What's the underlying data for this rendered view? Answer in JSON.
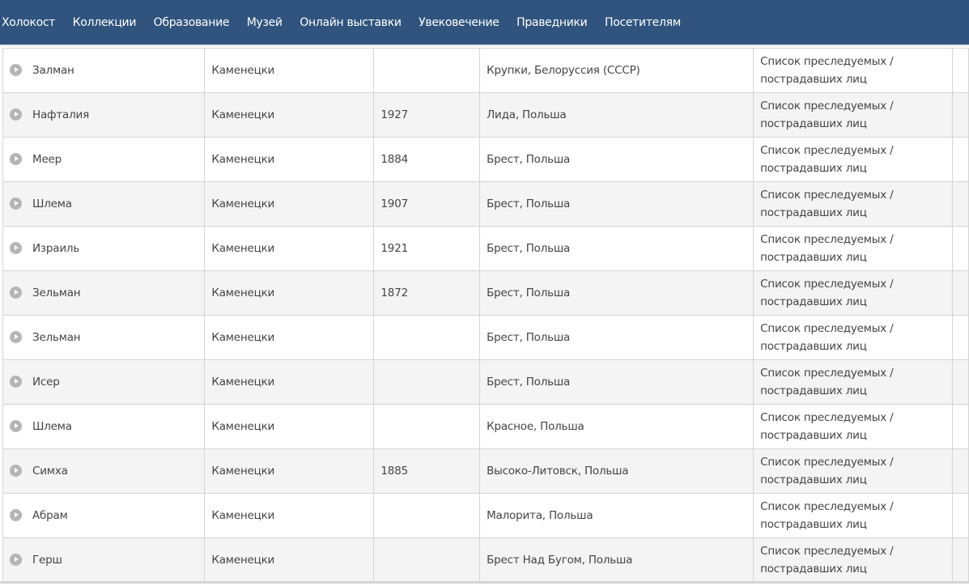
{
  "nav": [
    "Холокост",
    "Коллекции",
    "Образование",
    "Музей",
    "Онлайн выставки",
    "Увековечение",
    "Праведники",
    "Посетителям"
  ],
  "rows": [
    {
      "first": "Залман",
      "last": "Каменецки",
      "year": "",
      "place": "Крупки, Белоруссия (СССР)",
      "source": "Список преследуемых / пострадавших лиц"
    },
    {
      "first": "Нафталия",
      "last": "Каменецки",
      "year": "1927",
      "place": "Лида, Польша",
      "source": "Список преследуемых / пострадавших лиц"
    },
    {
      "first": "Меер",
      "last": "Каменецки",
      "year": "1884",
      "place": "Брест, Польша",
      "source": "Список преследуемых / пострадавших лиц"
    },
    {
      "first": "Шлема",
      "last": "Каменецки",
      "year": "1907",
      "place": "Брест, Польша",
      "source": "Список преследуемых / пострадавших лиц"
    },
    {
      "first": "Израиль",
      "last": "Каменецки",
      "year": "1921",
      "place": "Брест, Польша",
      "source": "Список преследуемых / пострадавших лиц"
    },
    {
      "first": "Зельман",
      "last": "Каменецки",
      "year": "1872",
      "place": "Брест, Польша",
      "source": "Список преследуемых / пострадавших лиц"
    },
    {
      "first": "Зельман",
      "last": "Каменецки",
      "year": "",
      "place": "Брест, Польша",
      "source": "Список преследуемых / пострадавших лиц"
    },
    {
      "first": "Исер",
      "last": "Каменецки",
      "year": "",
      "place": "Брест, Польша",
      "source": "Список преследуемых / пострадавших лиц"
    },
    {
      "first": "Шлема",
      "last": "Каменецки",
      "year": "",
      "place": "Красное, Польша",
      "source": "Список преследуемых / пострадавших лиц"
    },
    {
      "first": "Симха",
      "last": "Каменецки",
      "year": "1885",
      "place": "Высоко-Литовск, Польша",
      "source": "Список преследуемых / пострадавших лиц"
    },
    {
      "first": "Абрам",
      "last": "Каменецки",
      "year": "",
      "place": "Малорита, Польша",
      "source": "Список преследуемых / пострадавших лиц"
    },
    {
      "first": "Герш",
      "last": "Каменецки",
      "year": "",
      "place": "Брест Над Бугом, Польша",
      "source": "Список преследуемых / пострадавших лиц"
    }
  ]
}
